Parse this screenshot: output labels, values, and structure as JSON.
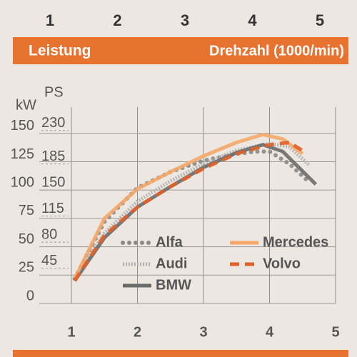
{
  "chart_data": {
    "type": "line",
    "title": "Leistung",
    "x_label": "Drehzahl (1000/min)",
    "y_label": "kW",
    "y2_label": "PS",
    "xlim": [
      1,
      5
    ],
    "xticks": [
      1,
      2,
      3,
      4,
      5
    ],
    "ylim": [
      0,
      170
    ],
    "yticks": [
      0,
      25,
      50,
      75,
      100,
      125,
      150
    ],
    "y2lim": [
      -12,
      247
    ],
    "y2ticks": [
      45,
      80,
      115,
      150,
      185,
      230
    ],
    "grid": true,
    "legend": "lower center",
    "series": [
      {
        "name": "Alfa",
        "color": "#8a8a8a",
        "style": "dotted",
        "x": [
          1.05,
          1.5,
          2,
          2.5,
          3,
          3.5,
          3.8,
          4,
          4.3,
          4.6
        ],
        "values": [
          22,
          72,
          102,
          116,
          126,
          132,
          134,
          134,
          123,
          107
        ]
      },
      {
        "name": "Audi",
        "color": "#b0b0b0",
        "style": "hatched",
        "x": [
          1.05,
          1.5,
          2,
          2.5,
          3,
          3.5,
          4,
          4.3,
          4.6
        ],
        "values": [
          21,
          62,
          90,
          108,
          123,
          135,
          141,
          138,
          122
        ]
      },
      {
        "name": "BMW",
        "color": "#6b6b6b",
        "style": "solid",
        "x": [
          1.05,
          1.5,
          2,
          2.5,
          3,
          3.5,
          3.9,
          4.2,
          4.7
        ],
        "values": [
          20,
          58,
          85,
          103,
          120,
          133,
          140,
          134,
          105
        ]
      },
      {
        "name": "Mercedes",
        "color": "#f5a86a",
        "style": "solid",
        "x": [
          1.05,
          1.5,
          2,
          2.5,
          3,
          3.5,
          3.9,
          4.2,
          4.5
        ],
        "values": [
          22,
          75,
          101,
          116,
          130,
          142,
          149,
          145,
          132
        ]
      },
      {
        "name": "Volvo",
        "color": "#e0602a",
        "style": "dashed",
        "x": [
          1.05,
          1.5,
          2,
          2.5,
          3,
          3.5,
          4,
          4.3,
          4.55
        ],
        "values": [
          20,
          60,
          85,
          103,
          119,
          132,
          140,
          142,
          133
        ]
      }
    ]
  }
}
